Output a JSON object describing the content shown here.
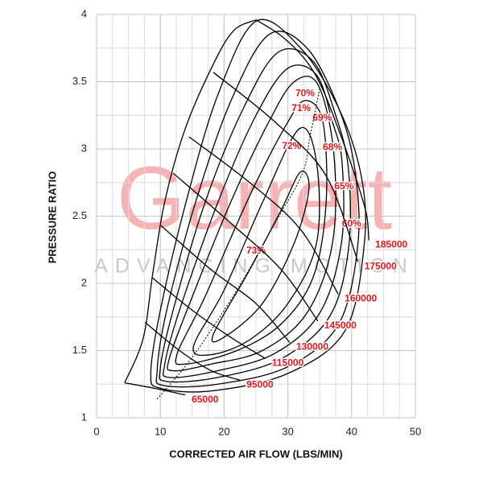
{
  "chart_data": {
    "type": "compressor_map",
    "xlabel": "CORRECTED AIR FLOW (LBS/MIN)",
    "ylabel": "PRESSURE RATIO",
    "watermark": "Garrett",
    "watermark_tagline": "ADVANCING MOTION",
    "xlim": [
      0,
      50
    ],
    "ylim": [
      1,
      4
    ],
    "xticks": [
      0,
      10,
      20,
      30,
      40,
      50
    ],
    "yticks": [
      1,
      1.5,
      2,
      2.5,
      3,
      3.5,
      4
    ],
    "grid": true,
    "xgrid_step": 2.5,
    "ygrid_step": 0.25,
    "line_color": "#000000",
    "label_color": "#e8141b",
    "surge_line": {
      "x": [
        4.4,
        7.3,
        8.8,
        10.7,
        13.9,
        18.3,
        21.5,
        25
      ],
      "values": [
        1.26,
        1.59,
        2.07,
        2.61,
        3.15,
        3.63,
        3.88,
        3.96
      ]
    },
    "series": [
      {
        "name": "65000",
        "x": [
          4.4,
          9,
          13.9
        ],
        "values": [
          1.26,
          1.22,
          1.17
        ]
      },
      {
        "name": "95000",
        "x": [
          7.6,
          13,
          18,
          22.5
        ],
        "values": [
          1.71,
          1.5,
          1.35,
          1.28
        ]
      },
      {
        "name": "115000",
        "x": [
          8.8,
          15,
          21,
          26.5
        ],
        "values": [
          2.04,
          1.8,
          1.6,
          1.44
        ]
      },
      {
        "name": "130000",
        "x": [
          10.1,
          18,
          25,
          30.3
        ],
        "values": [
          2.43,
          2.1,
          1.85,
          1.56
        ]
      },
      {
        "name": "145000",
        "x": [
          12,
          21,
          29,
          34.7
        ],
        "values": [
          2.82,
          2.45,
          2.1,
          1.72
        ]
      },
      {
        "name": "160000",
        "x": [
          14.5,
          24,
          32,
          37.9
        ],
        "values": [
          3.09,
          2.75,
          2.4,
          1.92
        ]
      },
      {
        "name": "175000",
        "x": [
          18.3,
          28,
          36,
          41
        ],
        "values": [
          3.57,
          3.2,
          2.8,
          2.16
        ]
      },
      {
        "name": "185000",
        "x": [
          25,
          29,
          32.8,
          35.4,
          37.9,
          40.4,
          42.3,
          42.7
        ],
        "values": [
          3.96,
          3.84,
          3.66,
          3.45,
          3.15,
          2.82,
          2.52,
          2.32
        ]
      }
    ],
    "islands": [
      {
        "name": "73%",
        "label_x": 25,
        "label_y": 2.24,
        "x": [
          18.3,
          24,
          29,
          32,
          33.3,
          31,
          26,
          20
        ],
        "values": [
          1.62,
          2.1,
          2.55,
          2.83,
          2.7,
          2.3,
          1.85,
          1.6
        ]
      },
      {
        "name": "72%",
        "label_x": 30.6,
        "label_y": 3.02,
        "x": [
          15.2,
          20,
          26,
          31.8,
          34.5,
          34.5,
          30,
          24,
          18
        ],
        "values": [
          1.53,
          1.95,
          2.6,
          3.15,
          2.9,
          2.3,
          1.85,
          1.58,
          1.47
        ]
      },
      {
        "name": "71%",
        "label_x": 32.1,
        "label_y": 3.3,
        "x": [
          12.6,
          17,
          24,
          30,
          32.8,
          35.5,
          36,
          34,
          29,
          22,
          14
        ],
        "values": [
          1.47,
          1.9,
          2.65,
          3.2,
          3.36,
          3.2,
          2.6,
          2.05,
          1.7,
          1.5,
          1.4
        ]
      },
      {
        "name": "70%",
        "label_x": 32.7,
        "label_y": 3.41,
        "x": [
          11.4,
          15,
          21,
          27,
          31,
          34.7,
          37.2,
          37,
          33,
          26,
          18,
          12
        ],
        "values": [
          1.44,
          1.9,
          2.6,
          3.2,
          3.5,
          3.48,
          2.97,
          2.3,
          1.78,
          1.5,
          1.4,
          1.35
        ]
      },
      {
        "name": "69%",
        "label_x": 35.4,
        "label_y": 3.23,
        "x": [
          10.7,
          13,
          19,
          25,
          30,
          34.5,
          37,
          38.5,
          38.4,
          35,
          28,
          19,
          11.4
        ],
        "values": [
          1.4,
          1.8,
          2.6,
          3.25,
          3.6,
          3.55,
          3.2,
          2.9,
          2.3,
          1.78,
          1.48,
          1.35,
          1.3
        ]
      },
      {
        "name": "68%",
        "label_x": 37,
        "label_y": 3.01,
        "x": [
          10,
          12,
          17,
          23,
          28.5,
          34,
          37.5,
          39.5,
          39.5,
          36.5,
          29,
          19,
          11
        ],
        "values": [
          1.37,
          1.8,
          2.6,
          3.3,
          3.72,
          3.65,
          3.25,
          2.85,
          2.25,
          1.75,
          1.44,
          1.3,
          1.27
        ]
      },
      {
        "name": "65%",
        "label_x": 38.8,
        "label_y": 2.72,
        "x": [
          9.5,
          11,
          15.5,
          21,
          27,
          33,
          38,
          40.5,
          41,
          38,
          30,
          19,
          10.5
        ],
        "values": [
          1.35,
          1.8,
          2.6,
          3.35,
          3.85,
          3.75,
          3.3,
          2.85,
          2.3,
          1.7,
          1.38,
          1.25,
          1.24
        ]
      },
      {
        "name": "60%",
        "label_x": 40,
        "label_y": 2.44,
        "x": [
          8.5,
          10,
          14,
          19,
          25,
          32,
          38,
          41.5,
          42,
          39,
          30,
          18,
          10
        ],
        "values": [
          1.33,
          1.8,
          2.6,
          3.4,
          3.95,
          3.75,
          3.3,
          2.8,
          2.3,
          1.65,
          1.33,
          1.2,
          1.22
        ]
      }
    ],
    "peak_line": {
      "x": [
        9.5,
        15,
        22,
        28,
        32.3,
        33.5,
        35
      ],
      "values": [
        1.14,
        1.45,
        1.95,
        2.45,
        2.82,
        3.1,
        3.45
      ]
    }
  }
}
